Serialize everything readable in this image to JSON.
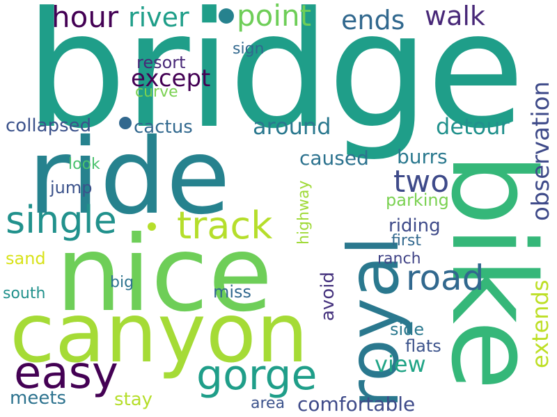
{
  "words": [
    {
      "text": "bridge",
      "color": "#1f9e89"
    },
    {
      "text": "ride",
      "color": "#26828e"
    },
    {
      "text": "nice",
      "color": "#6ece58"
    },
    {
      "text": "canyon",
      "color": "#a5db36"
    },
    {
      "text": "bike",
      "color": "#35b779"
    },
    {
      "text": "royal",
      "color": "#2a788e"
    },
    {
      "text": "gorge",
      "color": "#1f9e89"
    },
    {
      "text": "easy",
      "color": "#440154"
    },
    {
      "text": "track",
      "color": "#b5de2b"
    },
    {
      "text": "single",
      "color": "#21918c"
    },
    {
      "text": "road",
      "color": "#31688e"
    },
    {
      "text": "two",
      "color": "#3e4a89"
    },
    {
      "text": "hour",
      "color": "#440154"
    },
    {
      "text": "river",
      "color": "#1f9e89"
    },
    {
      "text": "point",
      "color": "#6ece58"
    },
    {
      "text": "ends",
      "color": "#31688e"
    },
    {
      "text": "walk",
      "color": "#482878"
    },
    {
      "text": "observation",
      "color": "#3e4a89"
    },
    {
      "text": "except",
      "color": "#440154"
    },
    {
      "text": "resort",
      "color": "#482878"
    },
    {
      "text": "curve",
      "color": "#7ad151"
    },
    {
      "text": "sign",
      "color": "#31688e"
    },
    {
      "text": "collapsed",
      "color": "#3b528b"
    },
    {
      "text": "cactus",
      "color": "#31688e"
    },
    {
      "text": "around",
      "color": "#2a788e"
    },
    {
      "text": "detour",
      "color": "#21918c"
    },
    {
      "text": "caused",
      "color": "#2c728e"
    },
    {
      "text": "burrs",
      "color": "#2a788e"
    },
    {
      "text": "look",
      "color": "#4ac16d"
    },
    {
      "text": "jump",
      "color": "#3b528b"
    },
    {
      "text": "highway",
      "color": "#a0da39"
    },
    {
      "text": "parking",
      "color": "#7ad151"
    },
    {
      "text": "extends",
      "color": "#bddf26"
    },
    {
      "text": "riding",
      "color": "#3e4a89"
    },
    {
      "text": "first",
      "color": "#31688e"
    },
    {
      "text": "sand",
      "color": "#d8e219"
    },
    {
      "text": "ranch",
      "color": "#414487"
    },
    {
      "text": "avoid",
      "color": "#46337e"
    },
    {
      "text": "big",
      "color": "#2c728e"
    },
    {
      "text": "south",
      "color": "#21918c"
    },
    {
      "text": "miss",
      "color": "#31688e"
    },
    {
      "text": "view",
      "color": "#20a486"
    },
    {
      "text": "side",
      "color": "#2a788e"
    },
    {
      "text": "flats",
      "color": "#3b528b"
    },
    {
      "text": "meets",
      "color": "#2c728e"
    },
    {
      "text": "stay",
      "color": "#b5de2b"
    },
    {
      "text": "area",
      "color": "#3b528b"
    },
    {
      "text": "comfortable",
      "color": "#3e4a89"
    }
  ],
  "dot_colors": [
    "#26828e",
    "#31688e",
    "#b5de2b"
  ]
}
